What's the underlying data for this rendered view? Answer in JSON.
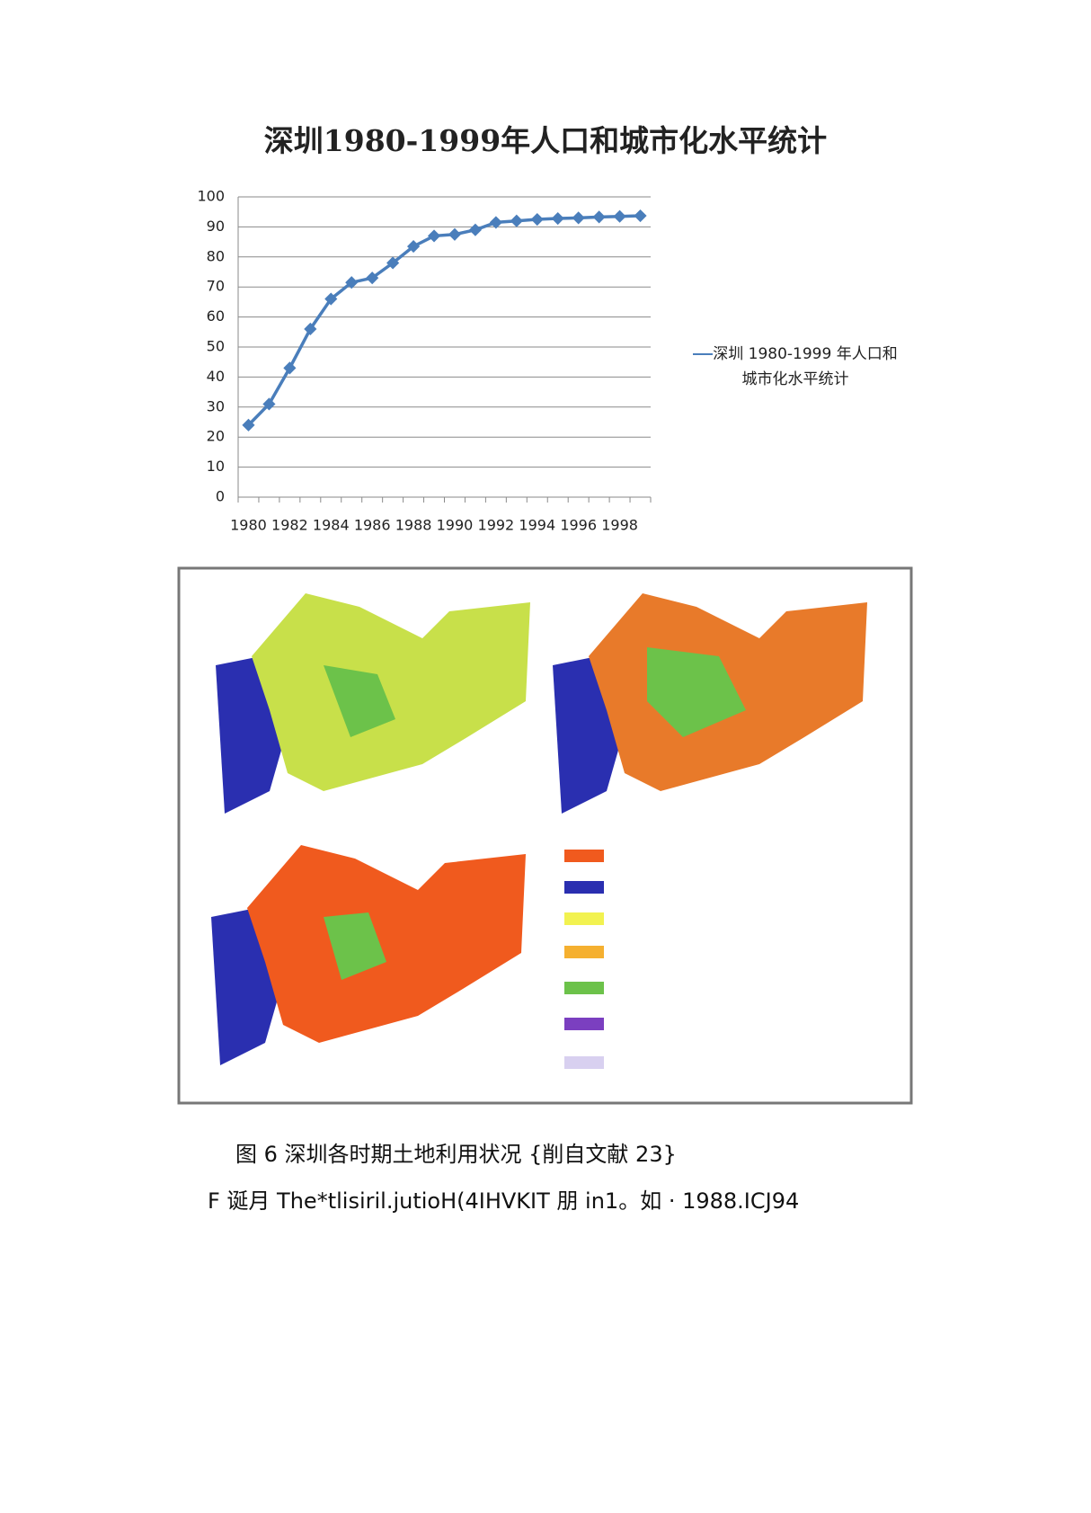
{
  "chart_data": {
    "type": "line",
    "title": "深圳1980-1999年人口和城市化水平统计",
    "categories": [
      "1980",
      null,
      "1982",
      null,
      "1984",
      null,
      "1986",
      null,
      "1988",
      null,
      "1990",
      null,
      "1992",
      null,
      "1994",
      null,
      "1996",
      null,
      "1998",
      null
    ],
    "series": [
      {
        "name": "深圳 1980-1999 年人口和城市化水平统计",
        "color": "#4a7ebb",
        "values": [
          24,
          31,
          43,
          56,
          66,
          71.5,
          73,
          78,
          83.5,
          87,
          87.5,
          89,
          91.5,
          92,
          92.5,
          92.8,
          93,
          93.3,
          93.5,
          93.7
        ]
      }
    ],
    "ylim": [
      0,
      100
    ],
    "yticks": [
      0,
      10,
      20,
      30,
      40,
      50,
      60,
      70,
      80,
      90,
      100
    ],
    "grid": true
  },
  "figure": {
    "caption": "图 6 深圳各时期土地利用状况 {削自文献 23}",
    "note": "F 诞月 The*tlisiril.jutioH(4IHVKIT 朋 in1。如 · 1988.ICJ94"
  }
}
